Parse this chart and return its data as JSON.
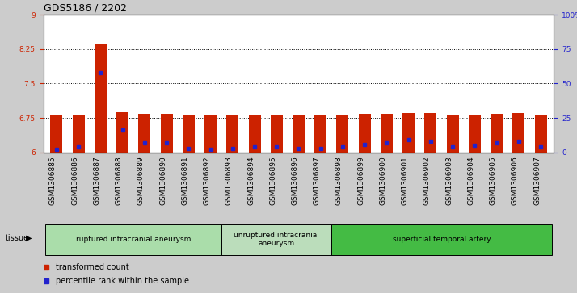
{
  "title": "GDS5186 / 2202",
  "samples": [
    "GSM1306885",
    "GSM1306886",
    "GSM1306887",
    "GSM1306888",
    "GSM1306889",
    "GSM1306890",
    "GSM1306891",
    "GSM1306892",
    "GSM1306893",
    "GSM1306894",
    "GSM1306895",
    "GSM1306896",
    "GSM1306897",
    "GSM1306898",
    "GSM1306899",
    "GSM1306900",
    "GSM1306901",
    "GSM1306902",
    "GSM1306903",
    "GSM1306904",
    "GSM1306905",
    "GSM1306906",
    "GSM1306907"
  ],
  "transformed_count": [
    6.82,
    6.82,
    8.35,
    6.87,
    6.84,
    6.84,
    6.81,
    6.8,
    6.83,
    6.83,
    6.83,
    6.82,
    6.82,
    6.83,
    6.84,
    6.84,
    6.86,
    6.85,
    6.82,
    6.83,
    6.84,
    6.85,
    6.83
  ],
  "percentile_rank": [
    2,
    4,
    58,
    16,
    7,
    7,
    3,
    2,
    3,
    4,
    4,
    3,
    3,
    4,
    6,
    7,
    9,
    8,
    4,
    5,
    7,
    8,
    4
  ],
  "ylim_left": [
    6,
    9
  ],
  "ylim_right": [
    0,
    100
  ],
  "yticks_left": [
    6,
    6.75,
    7.5,
    8.25,
    9
  ],
  "yticks_right": [
    0,
    25,
    50,
    75,
    100
  ],
  "bar_color": "#cc2200",
  "dot_color": "#2222cc",
  "groups": [
    {
      "label": "ruptured intracranial aneurysm",
      "start": 0,
      "end": 8
    },
    {
      "label": "unruptured intracranial\naneurysm",
      "start": 8,
      "end": 13
    },
    {
      "label": "superficial temporal artery",
      "start": 13,
      "end": 23
    }
  ],
  "group_colors": [
    "#aaddaa",
    "#bbddbb",
    "#44bb44"
  ],
  "tissue_label": "tissue",
  "legend_items": [
    {
      "label": "transformed count",
      "color": "#cc2200"
    },
    {
      "label": "percentile rank within the sample",
      "color": "#2222cc"
    }
  ],
  "background_color": "#cccccc",
  "xticklabel_bg": "#cccccc",
  "plot_bg_color": "#ffffff",
  "title_fontsize": 9,
  "tick_fontsize": 6.5,
  "label_fontsize": 7.5
}
